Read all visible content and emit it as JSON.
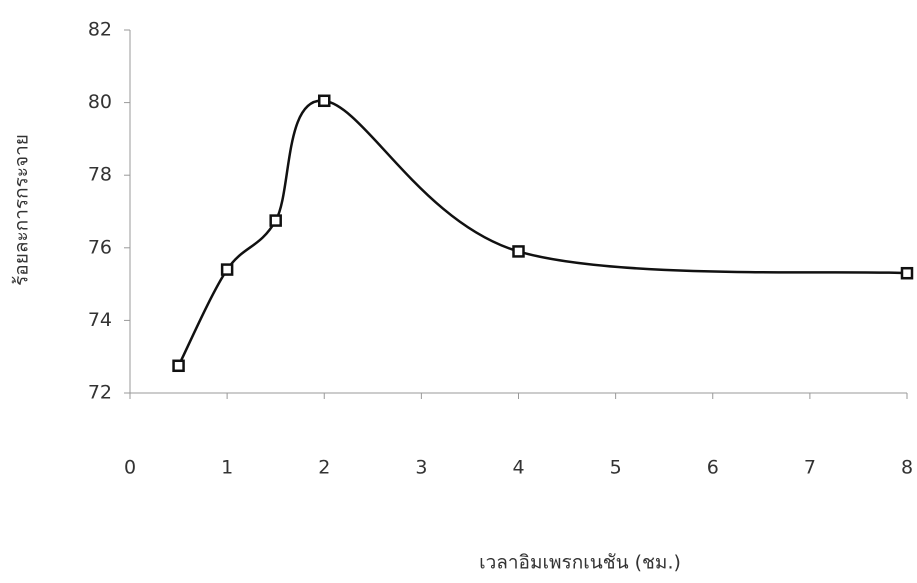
{
  "chart_data": {
    "type": "line",
    "x_label": "เวลาอิมเพรกเนชัน (ชม.)",
    "y_label": "ร้อยละการกระจาย",
    "x": [
      0.5,
      1,
      1.5,
      2,
      4,
      8
    ],
    "series": [
      {
        "color": "#111111",
        "values": [
          72.75,
          75.4,
          76.75,
          80.05,
          75.9,
          75.3
        ]
      }
    ],
    "xlim": [
      0,
      8
    ],
    "xticks": [
      0,
      1,
      2,
      3,
      4,
      5,
      6,
      7,
      8
    ],
    "ylim": [
      72,
      82
    ],
    "yticks": [
      72,
      74,
      76,
      78,
      80,
      82
    ],
    "smooth": true,
    "grid": false
  }
}
